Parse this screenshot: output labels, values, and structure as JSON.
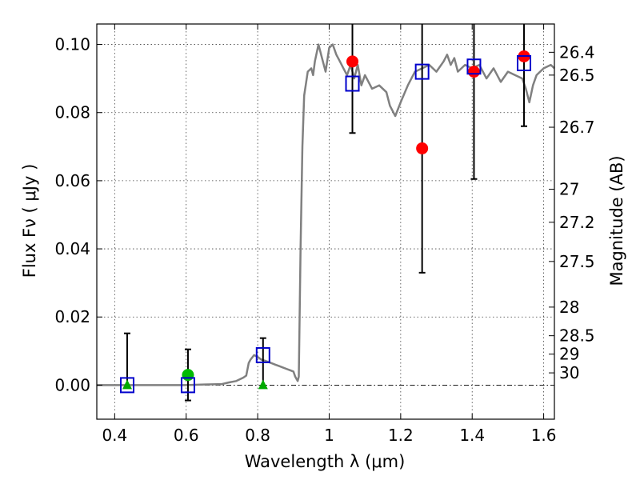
{
  "chart_data": {
    "type": "scatter",
    "xlabel": "Wavelength  λ (μm)",
    "ylabel": "Flux  Fν  ( μJy )",
    "ylabel_right": "Magnitude (AB)",
    "xlim": [
      0.35,
      1.63
    ],
    "ylim": [
      -0.01,
      0.106
    ],
    "grid": true,
    "x_ticks": [
      0.4,
      0.6,
      0.8,
      1.0,
      1.2,
      1.4,
      1.6
    ],
    "x_tick_labels": [
      "0.4",
      "0.6",
      "0.8",
      "1",
      "1.2",
      "1.4",
      "1.6"
    ],
    "y_ticks": [
      0.0,
      0.02,
      0.04,
      0.06,
      0.08,
      0.1
    ],
    "y_tick_labels": [
      "0.00",
      "0.02",
      "0.04",
      "0.06",
      "0.08",
      "0.10"
    ],
    "right_ticks": [
      {
        "flux": 0.0977,
        "label": "26.4"
      },
      {
        "flux": 0.091,
        "label": "26.5"
      },
      {
        "flux": 0.0757,
        "label": "26.7"
      },
      {
        "flux": 0.0575,
        "label": "27"
      },
      {
        "flux": 0.0478,
        "label": "27.2"
      },
      {
        "flux": 0.0363,
        "label": "27.5"
      },
      {
        "flux": 0.0229,
        "label": "28"
      },
      {
        "flux": 0.0145,
        "label": "28.5"
      },
      {
        "flux": 0.0091,
        "label": "29"
      },
      {
        "flux": 0.0036,
        "label": "30"
      }
    ],
    "series": [
      {
        "marker": "circle",
        "color": "#ff0000",
        "points": [
          {
            "x": 1.065,
            "y": 0.095,
            "ylo": 0.074,
            "yhi": 0.106
          },
          {
            "x": 1.26,
            "y": 0.0695,
            "ylo": 0.033,
            "yhi": 0.106
          },
          {
            "x": 1.405,
            "y": 0.092,
            "ylo": 0.0605,
            "yhi": 0.106
          },
          {
            "x": 1.545,
            "y": 0.0965,
            "ylo": 0.076,
            "yhi": 0.106
          }
        ]
      },
      {
        "marker": "circle",
        "color": "#00bb00",
        "points": [
          {
            "x": 0.605,
            "y": 0.003,
            "ylo": -0.0045,
            "yhi": 0.0105
          }
        ]
      },
      {
        "marker": "triangle",
        "color": "#00aa00",
        "points": [
          {
            "x": 0.435,
            "y": 0.0,
            "ylo": null,
            "yhi": 0.0152
          },
          {
            "x": 0.815,
            "y": 0.0,
            "ylo": null,
            "yhi": 0.0138
          }
        ]
      },
      {
        "marker": "square-open",
        "color": "#0000cc",
        "points": [
          {
            "x": 0.435,
            "y": 0.0
          },
          {
            "x": 0.605,
            "y": 0.0
          },
          {
            "x": 0.815,
            "y": 0.0088
          },
          {
            "x": 1.065,
            "y": 0.0885
          },
          {
            "x": 1.26,
            "y": 0.092
          },
          {
            "x": 1.405,
            "y": 0.0935
          },
          {
            "x": 1.545,
            "y": 0.0945
          }
        ]
      }
    ],
    "model_line": {
      "color": "#808080",
      "points": [
        [
          0.35,
          0.0
        ],
        [
          0.5,
          0.0
        ],
        [
          0.6,
          0.0
        ],
        [
          0.65,
          0.0002
        ],
        [
          0.7,
          0.0003
        ],
        [
          0.72,
          0.0008
        ],
        [
          0.74,
          0.0012
        ],
        [
          0.76,
          0.0022
        ],
        [
          0.768,
          0.0028
        ],
        [
          0.775,
          0.0065
        ],
        [
          0.78,
          0.0075
        ],
        [
          0.79,
          0.0088
        ],
        [
          0.8,
          0.0083
        ],
        [
          0.81,
          0.0075
        ],
        [
          0.82,
          0.0072
        ],
        [
          0.83,
          0.0068
        ],
        [
          0.84,
          0.0064
        ],
        [
          0.85,
          0.006
        ],
        [
          0.86,
          0.0056
        ],
        [
          0.87,
          0.0052
        ],
        [
          0.88,
          0.0048
        ],
        [
          0.89,
          0.0044
        ],
        [
          0.9,
          0.004
        ],
        [
          0.905,
          0.0025
        ],
        [
          0.912,
          0.0012
        ],
        [
          0.915,
          0.0025
        ],
        [
          0.92,
          0.04
        ],
        [
          0.925,
          0.07
        ],
        [
          0.93,
          0.085
        ],
        [
          0.94,
          0.092
        ],
        [
          0.95,
          0.093
        ],
        [
          0.955,
          0.091
        ],
        [
          0.96,
          0.095
        ],
        [
          0.97,
          0.1
        ],
        [
          0.98,
          0.096
        ],
        [
          0.99,
          0.092
        ],
        [
          1.0,
          0.099
        ],
        [
          1.01,
          0.1
        ],
        [
          1.02,
          0.097
        ],
        [
          1.03,
          0.095
        ],
        [
          1.04,
          0.093
        ],
        [
          1.05,
          0.091
        ],
        [
          1.06,
          0.094
        ],
        [
          1.07,
          0.09
        ],
        [
          1.08,
          0.094
        ],
        [
          1.09,
          0.088
        ],
        [
          1.1,
          0.091
        ],
        [
          1.12,
          0.087
        ],
        [
          1.14,
          0.088
        ],
        [
          1.16,
          0.086
        ],
        [
          1.17,
          0.082
        ],
        [
          1.185,
          0.079
        ],
        [
          1.2,
          0.083
        ],
        [
          1.22,
          0.088
        ],
        [
          1.24,
          0.092
        ],
        [
          1.26,
          0.093
        ],
        [
          1.28,
          0.094
        ],
        [
          1.3,
          0.092
        ],
        [
          1.32,
          0.095
        ],
        [
          1.33,
          0.097
        ],
        [
          1.34,
          0.094
        ],
        [
          1.35,
          0.096
        ],
        [
          1.36,
          0.092
        ],
        [
          1.38,
          0.094
        ],
        [
          1.4,
          0.093
        ],
        [
          1.42,
          0.094
        ],
        [
          1.44,
          0.09
        ],
        [
          1.46,
          0.093
        ],
        [
          1.48,
          0.089
        ],
        [
          1.5,
          0.092
        ],
        [
          1.52,
          0.091
        ],
        [
          1.54,
          0.09
        ],
        [
          1.55,
          0.087
        ],
        [
          1.56,
          0.083
        ],
        [
          1.57,
          0.088
        ],
        [
          1.58,
          0.091
        ],
        [
          1.6,
          0.093
        ],
        [
          1.62,
          0.094
        ],
        [
          1.63,
          0.093
        ]
      ]
    }
  }
}
